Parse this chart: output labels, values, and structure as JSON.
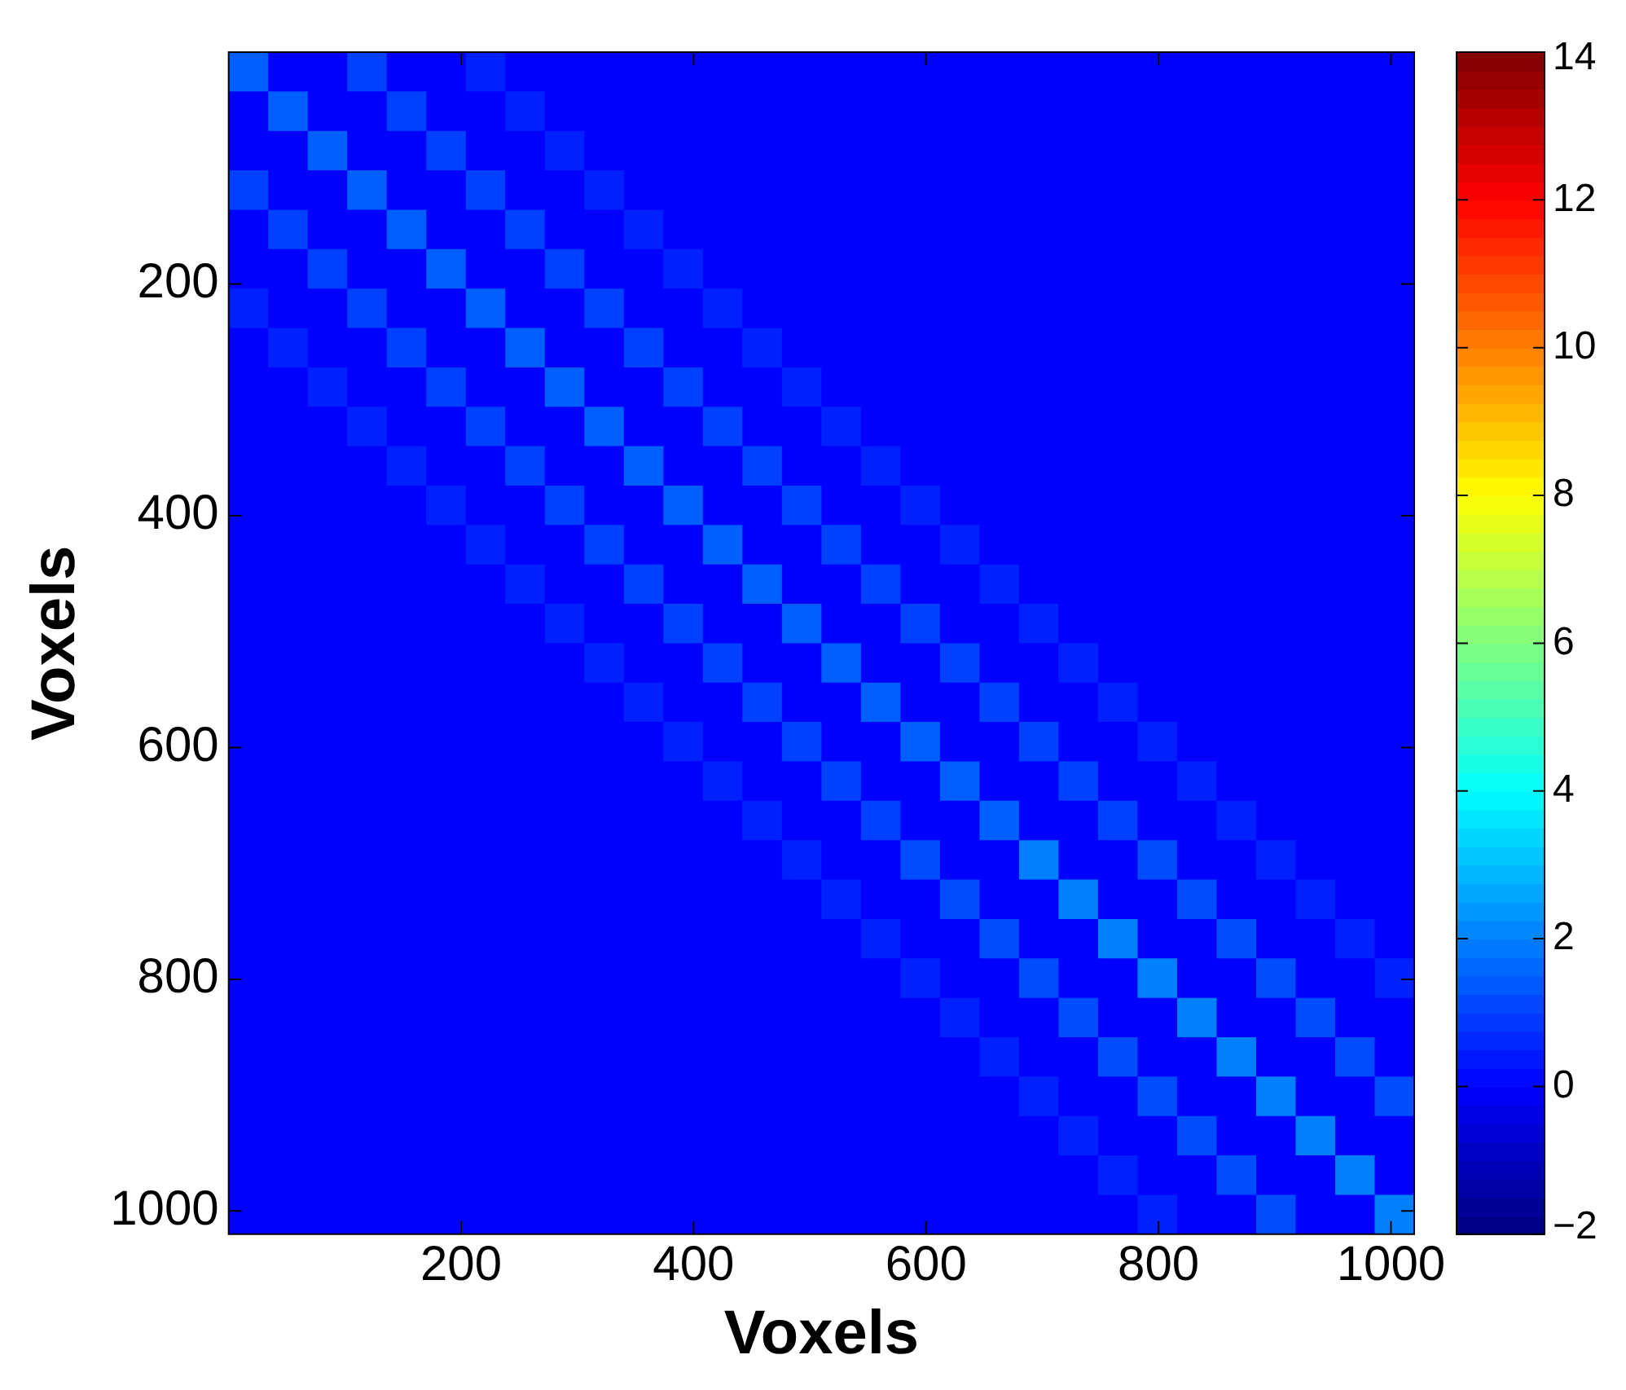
{
  "chart_data": {
    "type": "heatmap",
    "xlabel": "Voxels",
    "ylabel": "Voxels",
    "x": [
      17,
      51,
      85,
      119,
      153,
      187,
      221,
      255,
      289,
      323,
      357,
      391,
      425,
      459,
      493,
      527,
      561,
      595,
      629,
      663,
      697,
      731,
      765,
      799,
      833,
      867,
      901,
      935,
      969,
      1003
    ],
    "y": [
      17,
      51,
      85,
      119,
      153,
      187,
      221,
      255,
      289,
      323,
      357,
      391,
      425,
      459,
      493,
      527,
      561,
      595,
      629,
      663,
      697,
      731,
      765,
      799,
      833,
      867,
      901,
      935,
      969,
      1003
    ],
    "xlim": [
      0,
      1020
    ],
    "ylim": [
      1020,
      0
    ],
    "xticks": [
      200,
      400,
      600,
      800,
      1000
    ],
    "yticks": [
      200,
      400,
      600,
      800,
      1000
    ],
    "clim": [
      -2,
      14
    ],
    "cticks": [
      -2,
      0,
      2,
      4,
      6,
      8,
      10,
      12,
      14
    ],
    "cells": [
      [
        1.5,
        0,
        0,
        1,
        0,
        0,
        0.5,
        0,
        0,
        0,
        0,
        0,
        0,
        0,
        0,
        0,
        0,
        0,
        0,
        0,
        0,
        0,
        0,
        0,
        0,
        0,
        0,
        0,
        0,
        0
      ],
      [
        0,
        1.5,
        0,
        0,
        1,
        0,
        0,
        0.5,
        0,
        0,
        0,
        0,
        0,
        0,
        0,
        0,
        0,
        0,
        0,
        0,
        0,
        0,
        0,
        0,
        0,
        0,
        0,
        0,
        0,
        0
      ],
      [
        0,
        0,
        1.5,
        0,
        0,
        1,
        0,
        0,
        0.5,
        0,
        0,
        0,
        0,
        0,
        0,
        0,
        0,
        0,
        0,
        0,
        0,
        0,
        0,
        0,
        0,
        0,
        0,
        0,
        0,
        0
      ],
      [
        1,
        0,
        0,
        1.5,
        0,
        0,
        1,
        0,
        0,
        0.5,
        0,
        0,
        0,
        0,
        0,
        0,
        0,
        0,
        0,
        0,
        0,
        0,
        0,
        0,
        0,
        0,
        0,
        0,
        0,
        0
      ],
      [
        0,
        1,
        0,
        0,
        1.5,
        0,
        0,
        1,
        0,
        0,
        0.5,
        0,
        0,
        0,
        0,
        0,
        0,
        0,
        0,
        0,
        0,
        0,
        0,
        0,
        0,
        0,
        0,
        0,
        0,
        0
      ],
      [
        0,
        0,
        1,
        0,
        0,
        1.5,
        0,
        0,
        1,
        0,
        0,
        0.5,
        0,
        0,
        0,
        0,
        0,
        0,
        0,
        0,
        0,
        0,
        0,
        0,
        0,
        0,
        0,
        0,
        0,
        0
      ],
      [
        0.5,
        0,
        0,
        1,
        0,
        0,
        1.5,
        0,
        0,
        1,
        0,
        0,
        0.5,
        0,
        0,
        0,
        0,
        0,
        0,
        0,
        0,
        0,
        0,
        0,
        0,
        0,
        0,
        0,
        0,
        0
      ],
      [
        0,
        0.5,
        0,
        0,
        1,
        0,
        0,
        1.5,
        0,
        0,
        1,
        0,
        0,
        0.5,
        0,
        0,
        0,
        0,
        0,
        0,
        0,
        0,
        0,
        0,
        0,
        0,
        0,
        0,
        0,
        0
      ],
      [
        0,
        0,
        0.5,
        0,
        0,
        1,
        0,
        0,
        1.5,
        0,
        0,
        1,
        0,
        0,
        0.5,
        0,
        0,
        0,
        0,
        0,
        0,
        0,
        0,
        0,
        0,
        0,
        0,
        0,
        0,
        0
      ],
      [
        0,
        0,
        0,
        0.5,
        0,
        0,
        1,
        0,
        0,
        1.5,
        0,
        0,
        1,
        0,
        0,
        0.5,
        0,
        0,
        0,
        0,
        0,
        0,
        0,
        0,
        0,
        0,
        0,
        0,
        0,
        0
      ],
      [
        0,
        0,
        0,
        0,
        0.5,
        0,
        0,
        1,
        0,
        0,
        1.5,
        0,
        0,
        1,
        0,
        0,
        0.5,
        0,
        0,
        0,
        0,
        0,
        0,
        0,
        0,
        0,
        0,
        0,
        0,
        0
      ],
      [
        0,
        0,
        0,
        0,
        0,
        0.5,
        0,
        0,
        1,
        0,
        0,
        1.5,
        0,
        0,
        1,
        0,
        0,
        0.5,
        0,
        0,
        0,
        0,
        0,
        0,
        0,
        0,
        0,
        0,
        0,
        0
      ],
      [
        0,
        0,
        0,
        0,
        0,
        0,
        0.5,
        0,
        0,
        1,
        0,
        0,
        1.5,
        0,
        0,
        1,
        0,
        0,
        0.5,
        0,
        0,
        0,
        0,
        0,
        0,
        0,
        0,
        0,
        0,
        0
      ],
      [
        0,
        0,
        0,
        0,
        0,
        0,
        0,
        0.5,
        0,
        0,
        1,
        0,
        0,
        1.5,
        0,
        0,
        1,
        0,
        0,
        0.5,
        0,
        0,
        0,
        0,
        0,
        0,
        0,
        0,
        0,
        0
      ],
      [
        0,
        0,
        0,
        0,
        0,
        0,
        0,
        0,
        0.5,
        0,
        0,
        1,
        0,
        0,
        1.5,
        0,
        0,
        1,
        0,
        0,
        0.5,
        0,
        0,
        0,
        0,
        0,
        0,
        0,
        0,
        0
      ],
      [
        0,
        0,
        0,
        0,
        0,
        0,
        0,
        0,
        0,
        0.5,
        0,
        0,
        1,
        0,
        0,
        1.5,
        0,
        0,
        1,
        0,
        0,
        0.5,
        0,
        0,
        0,
        0,
        0,
        0,
        0,
        0
      ],
      [
        0,
        0,
        0,
        0,
        0,
        0,
        0,
        0,
        0,
        0,
        0.5,
        0,
        0,
        1,
        0,
        0,
        1.5,
        0,
        0,
        1,
        0,
        0,
        0.5,
        0,
        0,
        0,
        0,
        0,
        0,
        0
      ],
      [
        0,
        0,
        0,
        0,
        0,
        0,
        0,
        0,
        0,
        0,
        0,
        0.5,
        0,
        0,
        1,
        0,
        0,
        1.5,
        0,
        0,
        1,
        0,
        0,
        0.5,
        0,
        0,
        0,
        0,
        0,
        0
      ],
      [
        0,
        0,
        0,
        0,
        0,
        0,
        0,
        0,
        0,
        0,
        0,
        0,
        0.5,
        0,
        0,
        1,
        0,
        0,
        1.5,
        0,
        0,
        1,
        0,
        0,
        0.5,
        0,
        0,
        0,
        0,
        0
      ],
      [
        0,
        0,
        0,
        0,
        0,
        0,
        0,
        0,
        0,
        0,
        0,
        0,
        0,
        0.5,
        0,
        0,
        1,
        0,
        0,
        1.5,
        0,
        0,
        1,
        0,
        0,
        0.5,
        0,
        0,
        0,
        0
      ],
      [
        0,
        0,
        0,
        0,
        0,
        0,
        0,
        0,
        0,
        0,
        0,
        0,
        0,
        0,
        0.5,
        0,
        0,
        1.2,
        0,
        0,
        2,
        0,
        0,
        1.2,
        0,
        0,
        0.5,
        0,
        0,
        0
      ],
      [
        0,
        0,
        0,
        0,
        0,
        0,
        0,
        0,
        0,
        0,
        0,
        0,
        0,
        0,
        0,
        0.5,
        0,
        0,
        1.2,
        0,
        0,
        2,
        0,
        0,
        1.2,
        0,
        0,
        0.5,
        0,
        0
      ],
      [
        0,
        0,
        0,
        0,
        0,
        0,
        0,
        0,
        0,
        0,
        0,
        0,
        0,
        0,
        0,
        0,
        0.5,
        0,
        0,
        1.2,
        0,
        0,
        2,
        0,
        0,
        1.2,
        0,
        0,
        0.5,
        0
      ],
      [
        0,
        0,
        0,
        0,
        0,
        0,
        0,
        0,
        0,
        0,
        0,
        0,
        0,
        0,
        0,
        0,
        0,
        0.5,
        0,
        0,
        1.2,
        0,
        0,
        2,
        0,
        0,
        1.2,
        0,
        0,
        0.5
      ],
      [
        0,
        0,
        0,
        0,
        0,
        0,
        0,
        0,
        0,
        0,
        0,
        0,
        0,
        0,
        0,
        0,
        0,
        0,
        0.5,
        0,
        0,
        1.2,
        0,
        0,
        2,
        0,
        0,
        1.2,
        0,
        0
      ],
      [
        0,
        0,
        0,
        0,
        0,
        0,
        0,
        0,
        0,
        0,
        0,
        0,
        0,
        0,
        0,
        0,
        0,
        0,
        0,
        0.5,
        0,
        0,
        1.2,
        0,
        0,
        2,
        0,
        0,
        1.2,
        0
      ],
      [
        0,
        0,
        0,
        0,
        0,
        0,
        0,
        0,
        0,
        0,
        0,
        0,
        0,
        0,
        0,
        0,
        0,
        0,
        0,
        0,
        0.5,
        0,
        0,
        1.2,
        0,
        0,
        2,
        0,
        0,
        1.2
      ],
      [
        0,
        0,
        0,
        0,
        0,
        0,
        0,
        0,
        0,
        0,
        0,
        0,
        0,
        0,
        0,
        0,
        0,
        0,
        0,
        0,
        0,
        0.5,
        0,
        0,
        1.2,
        0,
        0,
        2,
        0,
        0
      ],
      [
        0,
        0,
        0,
        0,
        0,
        0,
        0,
        0,
        0,
        0,
        0,
        0,
        0,
        0,
        0,
        0,
        0,
        0,
        0,
        0,
        0,
        0,
        0.5,
        0,
        0,
        1.2,
        0,
        0,
        2,
        0
      ],
      [
        0,
        0,
        0,
        0,
        0,
        0,
        0,
        0,
        0,
        0,
        0,
        0,
        0,
        0,
        0,
        0,
        0,
        0,
        0,
        0,
        0,
        0,
        0,
        0.5,
        0,
        0,
        1.2,
        0,
        0,
        2
      ]
    ]
  }
}
